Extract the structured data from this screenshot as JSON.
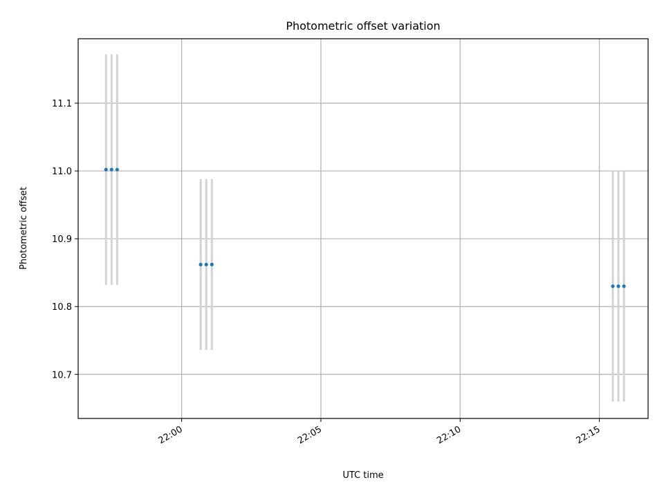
{
  "chart_data": {
    "type": "scatter",
    "title": "Photometric offset variation",
    "xlabel": "UTC time",
    "ylabel": "Photometric offset",
    "x_ticks": [
      "22:00",
      "22:05",
      "22:10",
      "22:15"
    ],
    "y_ticks": [
      "10.7",
      "10.8",
      "10.9",
      "11.0",
      "11.1"
    ],
    "grid": true,
    "xlim": [
      "21:56:17",
      "22:16:45"
    ],
    "ylim": [
      10.635,
      11.195
    ],
    "series": [
      {
        "points": [
          {
            "x": "21:57:17",
            "y": 11.002,
            "ylo": 10.832,
            "yhi": 11.172
          },
          {
            "x": "21:57:29",
            "y": 11.002,
            "ylo": 10.832,
            "yhi": 11.172
          },
          {
            "x": "21:57:41",
            "y": 11.002,
            "ylo": 10.832,
            "yhi": 11.172
          },
          {
            "x": "22:00:41",
            "y": 10.862,
            "ylo": 10.736,
            "yhi": 10.988
          },
          {
            "x": "22:00:53",
            "y": 10.862,
            "ylo": 10.736,
            "yhi": 10.988
          },
          {
            "x": "22:01:05",
            "y": 10.862,
            "ylo": 10.736,
            "yhi": 10.988
          },
          {
            "x": "22:15:29",
            "y": 10.83,
            "ylo": 10.66,
            "yhi": 11.0
          },
          {
            "x": "22:15:41",
            "y": 10.83,
            "ylo": 10.66,
            "yhi": 11.0
          },
          {
            "x": "22:15:53",
            "y": 10.83,
            "ylo": 10.66,
            "yhi": 11.0
          }
        ]
      }
    ]
  }
}
